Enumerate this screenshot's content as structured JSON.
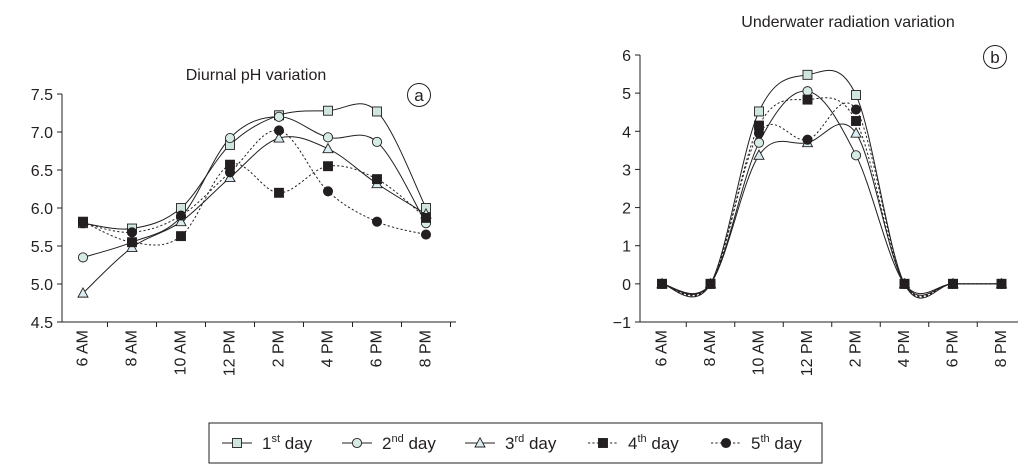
{
  "chart_data": [
    {
      "id": "a",
      "type": "line",
      "title": "Diurnal pH variation",
      "panel_label": "a",
      "categories": [
        "6 AM",
        "8 AM",
        "10 AM",
        "12 PM",
        "2 PM",
        "4 PM",
        "6 PM",
        "8 PM"
      ],
      "ylim": [
        4.5,
        7.5
      ],
      "yticks": [
        "4.5",
        "5.0",
        "5.5",
        "6.0",
        "6.5",
        "7.0",
        "7.5"
      ],
      "grid": false,
      "series": [
        {
          "name": "1st day",
          "values": [
            5.8,
            5.73,
            6.0,
            6.83,
            7.22,
            7.28,
            7.27,
            6.0
          ],
          "marker": "square-open",
          "line": "solid"
        },
        {
          "name": "2nd day",
          "values": [
            5.35,
            5.55,
            5.88,
            6.92,
            7.2,
            6.93,
            6.87,
            5.8
          ],
          "marker": "circle-open",
          "line": "solid"
        },
        {
          "name": "3rd day",
          "values": [
            4.88,
            5.48,
            5.82,
            6.4,
            6.92,
            6.78,
            6.32,
            5.92
          ],
          "marker": "triangle-open",
          "line": "solid"
        },
        {
          "name": "4th day",
          "values": [
            5.82,
            5.55,
            5.63,
            6.57,
            6.2,
            6.55,
            6.38,
            5.87
          ],
          "marker": "square-filled",
          "line": "dotted"
        },
        {
          "name": "5th day",
          "values": [
            5.8,
            5.68,
            5.9,
            6.47,
            7.02,
            6.22,
            5.82,
            5.65
          ],
          "marker": "circle-filled",
          "line": "dotted"
        }
      ]
    },
    {
      "id": "b",
      "type": "line",
      "title": "Underwater radiation variation",
      "panel_label": "b",
      "categories": [
        "6 AM",
        "8 AM",
        "10 AM",
        "12 PM",
        "2 PM",
        "4 PM",
        "6 PM",
        "8 PM"
      ],
      "ylim": [
        -1,
        6
      ],
      "yticks": [
        "−1",
        "0",
        "1",
        "2",
        "3",
        "4",
        "5",
        "6"
      ],
      "grid": false,
      "series": [
        {
          "name": "1st day",
          "values": [
            0,
            0,
            4.52,
            5.48,
            4.95,
            0,
            0,
            0
          ],
          "marker": "square-open",
          "line": "solid"
        },
        {
          "name": "2nd day",
          "values": [
            0,
            0,
            3.7,
            5.05,
            3.37,
            0,
            0,
            0
          ],
          "marker": "circle-open",
          "line": "solid"
        },
        {
          "name": "3rd day",
          "values": [
            0,
            0,
            3.37,
            3.7,
            3.95,
            0,
            0,
            0
          ],
          "marker": "triangle-open",
          "line": "solid"
        },
        {
          "name": "4th day",
          "values": [
            0,
            0,
            4.15,
            4.83,
            4.27,
            0,
            0,
            0
          ],
          "marker": "square-filled",
          "line": "dotted"
        },
        {
          "name": "5th day",
          "values": [
            0,
            0,
            3.95,
            3.78,
            4.57,
            0,
            0,
            0
          ],
          "marker": "circle-filled",
          "line": "dotted"
        }
      ]
    }
  ],
  "legend": {
    "placement": "bottom",
    "entries": [
      {
        "base": "1",
        "sup": "st",
        "rest": " day",
        "marker": "square-open",
        "line": "solid"
      },
      {
        "base": "2",
        "sup": "nd",
        "rest": " day",
        "marker": "circle-open",
        "line": "solid"
      },
      {
        "base": "3",
        "sup": "rd",
        "rest": " day",
        "marker": "triangle-open",
        "line": "solid"
      },
      {
        "base": "4",
        "sup": "th",
        "rest": " day",
        "marker": "square-filled",
        "line": "dotted"
      },
      {
        "base": "5",
        "sup": "th",
        "rest": " day",
        "marker": "circle-filled",
        "line": "dotted"
      }
    ]
  },
  "colors": {
    "ink": "#231f20",
    "open_fill_square": "#cfe6dd",
    "open_fill_circle": "#d6ebe6",
    "open_fill_triangle": "#d9ecef"
  }
}
